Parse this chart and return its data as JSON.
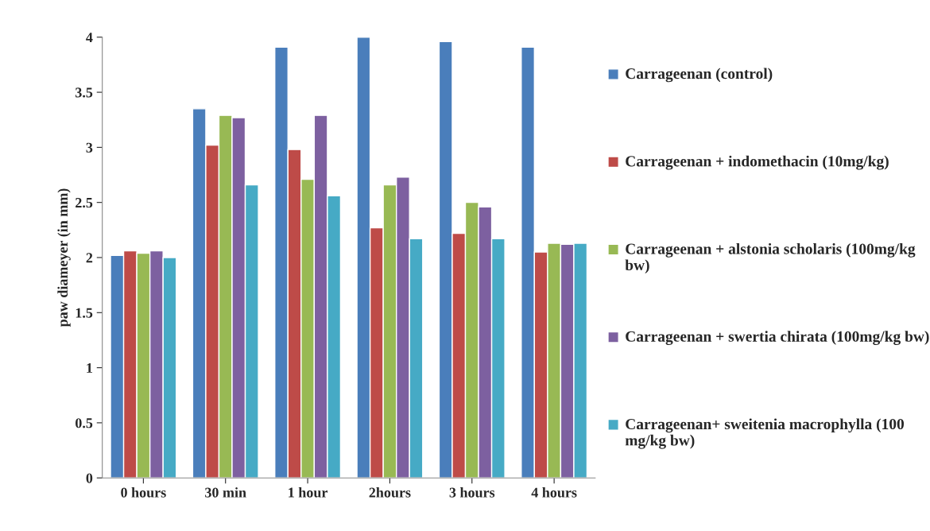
{
  "chart_data": {
    "type": "bar",
    "ylabel": "paw diameyer (in mm)",
    "categories": [
      "0 hours",
      "30 min",
      "1 hour",
      "2hours",
      "3 hours",
      "4 hours"
    ],
    "series": [
      {
        "name": "Carrageenan (control)",
        "color": "#4a7ebb",
        "values": [
          2.02,
          3.35,
          3.91,
          4.0,
          3.96,
          3.91
        ]
      },
      {
        "name": "Carrageenan + indomethacin (10mg/kg)",
        "color": "#be4b48",
        "values": [
          2.06,
          3.02,
          2.98,
          2.27,
          2.22,
          2.05
        ]
      },
      {
        "name": "Carrageenan + alstonia scholaris (100mg/kg bw)",
        "color": "#98b954",
        "values": [
          2.04,
          3.29,
          2.71,
          2.66,
          2.5,
          2.13
        ]
      },
      {
        "name": "Carrageenan + swertia chirata (100mg/kg bw)",
        "color": "#7d60a0",
        "values": [
          2.06,
          3.27,
          3.29,
          2.73,
          2.46,
          2.12
        ]
      },
      {
        "name": "Carrageenan+ sweitenia macrophylla (100 mg/kg bw)",
        "color": "#46aac5",
        "values": [
          2.0,
          2.66,
          2.56,
          2.17,
          2.17,
          2.13
        ]
      }
    ],
    "ylim": [
      0,
      4
    ],
    "yticks": [
      0,
      0.5,
      1,
      1.5,
      2,
      2.5,
      3,
      3.5,
      4
    ],
    "grid": false,
    "legend": "right"
  }
}
